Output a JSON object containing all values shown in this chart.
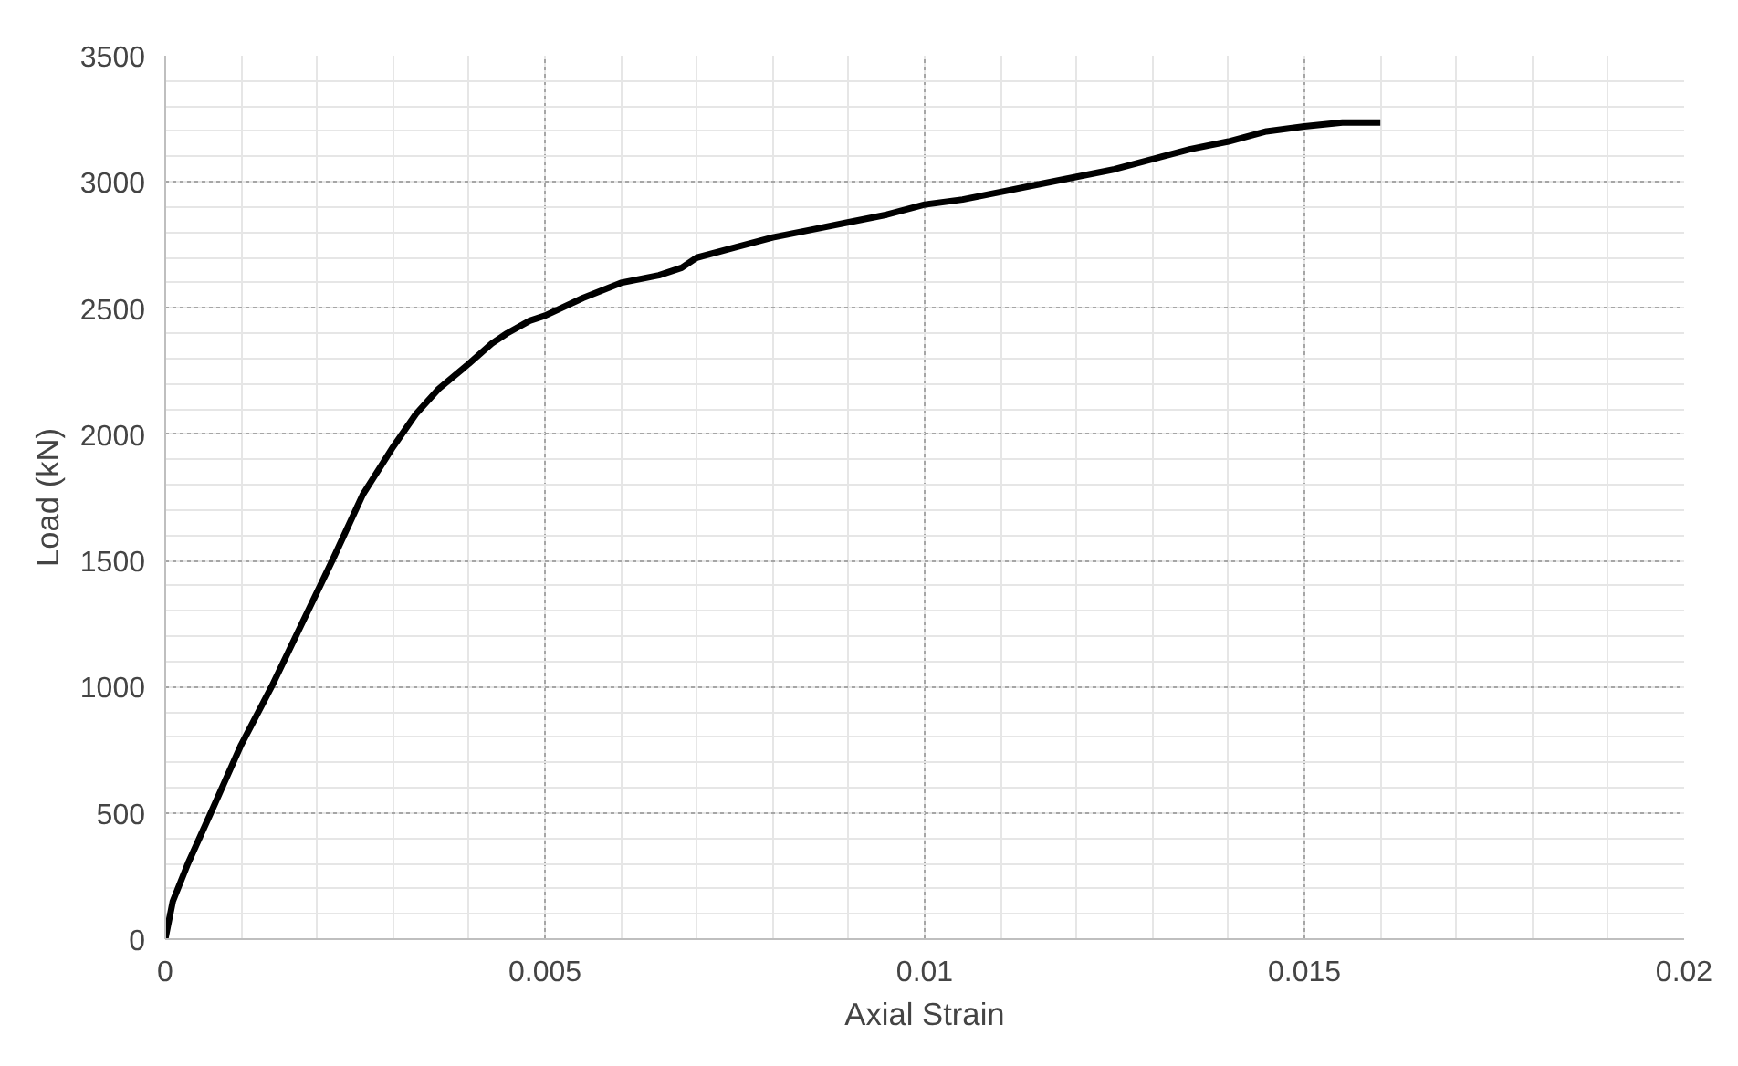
{
  "chart_data": {
    "type": "line",
    "xlabel": "Axial Strain",
    "ylabel": "Load (kN)",
    "x": [
      0,
      0.0001,
      0.0003,
      0.0006,
      0.001,
      0.0014,
      0.0018,
      0.0022,
      0.0026,
      0.003,
      0.0033,
      0.0036,
      0.004,
      0.0043,
      0.0045,
      0.0048,
      0.005,
      0.0055,
      0.006,
      0.0065,
      0.0068,
      0.007,
      0.0075,
      0.008,
      0.0085,
      0.009,
      0.0095,
      0.01,
      0.0105,
      0.011,
      0.0115,
      0.012,
      0.0125,
      0.013,
      0.0135,
      0.014,
      0.0145,
      0.015,
      0.0155,
      0.016
    ],
    "series": [
      {
        "color": "#000000",
        "values": [
          0,
          150,
          300,
          500,
          770,
          1000,
          1250,
          1500,
          1760,
          1950,
          2080,
          2180,
          2280,
          2360,
          2400,
          2450,
          2470,
          2540,
          2600,
          2630,
          2660,
          2700,
          2740,
          2780,
          2810,
          2840,
          2870,
          2910,
          2930,
          2960,
          2990,
          3020,
          3050,
          3090,
          3130,
          3160,
          3200,
          3220,
          3235,
          3235
        ]
      }
    ],
    "xlim": [
      0,
      0.02
    ],
    "xticks": [
      0,
      0.005,
      0.01,
      0.015,
      0.02
    ],
    "ylim": [
      0,
      3500
    ],
    "yticks": [
      0,
      500,
      1000,
      1500,
      2000,
      2500,
      3000,
      3500
    ],
    "grid": true,
    "marker": "none",
    "line_style": "solid"
  }
}
